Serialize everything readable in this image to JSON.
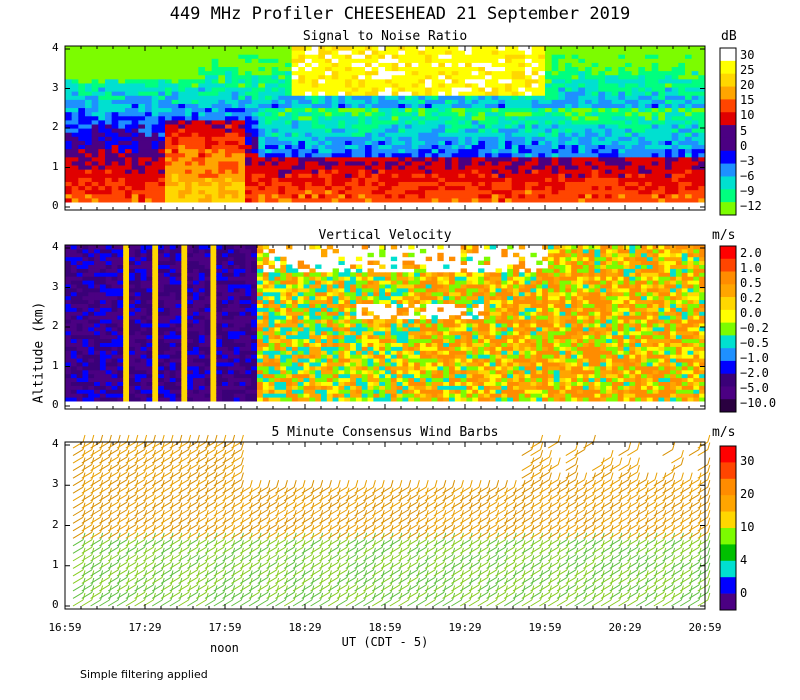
{
  "title": "449 MHz Profiler CHEESEHEAD 21 September 2019",
  "ylabel": "Altitude (km)",
  "xlabel": "UT  (CDT - 5)",
  "noon_label": "noon",
  "footnote": "Simple filtering applied",
  "x_ticks": [
    "16:59",
    "17:29",
    "17:59",
    "18:29",
    "18:59",
    "19:29",
    "19:59",
    "20:29",
    "20:59"
  ],
  "y_ticks": [
    "0",
    "1",
    "2",
    "3",
    "4"
  ],
  "chart_data": [
    {
      "type": "heatmap",
      "title": "Signal to Noise Ratio",
      "unit": "dB",
      "x_range": [
        "16:59",
        "20:59"
      ],
      "ylim": [
        0,
        4
      ],
      "colorbar": {
        "labels": [
          "30",
          "25",
          "20",
          "15",
          "10",
          "5",
          "0",
          "−3",
          "−6",
          "−9",
          "−12"
        ],
        "colors": [
          "#ffffff",
          "#ffff00",
          "#ffd700",
          "#ffa500",
          "#ff4500",
          "#e00000",
          "#4b0082",
          "#4b0082",
          "#0000ff",
          "#1e90ff",
          "#00e0d0",
          "#00ff7f",
          "#7cfc00"
        ]
      },
      "description_points": [
        {
          "x": "17:25",
          "y": 1.0,
          "value": 20
        },
        {
          "x": "19:00",
          "y": 0.7,
          "value": 10
        },
        {
          "x": "19:00",
          "y": 2.0,
          "value": 0
        },
        {
          "x": "19:30",
          "y": 3.5,
          "value": 30
        }
      ]
    },
    {
      "type": "heatmap",
      "title": "Vertical Velocity",
      "unit": "m/s",
      "x_range": [
        "16:59",
        "20:59"
      ],
      "ylim": [
        0,
        4
      ],
      "colorbar": {
        "labels": [
          "2.0",
          "1.0",
          "0.5",
          "0.2",
          "0.0",
          "−0.2",
          "−0.5",
          "−1.0",
          "−2.0",
          "−5.0",
          "−10.0"
        ],
        "colors": [
          "#ff0000",
          "#ff4500",
          "#ff8c00",
          "#ffa500",
          "#ffd700",
          "#ffff00",
          "#7cfc00",
          "#00e0d0",
          "#1e90ff",
          "#0000ff",
          "#3a0078",
          "#4b0082",
          "#2a0040"
        ]
      }
    },
    {
      "type": "wind_barbs",
      "title": "5 Minute Consensus Wind Barbs",
      "unit": "m/s",
      "x_range": [
        "16:59",
        "20:59"
      ],
      "ylim": [
        0,
        4
      ],
      "colorbar": {
        "labels": [
          "30",
          "20",
          "10",
          "4",
          "0"
        ],
        "colors": [
          "#ff0000",
          "#ff4500",
          "#ff8c00",
          "#ffa500",
          "#ffd700",
          "#7cfc00",
          "#00c000",
          "#00e0d0",
          "#0000ff",
          "#4b0082"
        ]
      }
    }
  ]
}
